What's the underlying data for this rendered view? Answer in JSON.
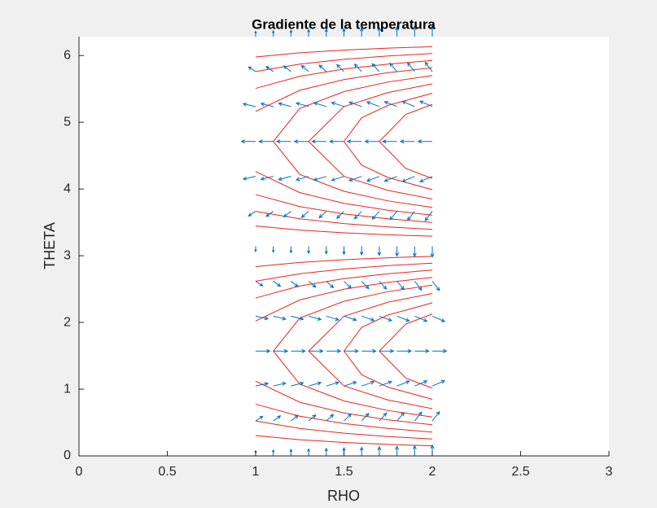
{
  "chart_data": {
    "type": "contour",
    "title": "Gradiente de la temperatura",
    "x_label": "RHO",
    "y_label": "THETA",
    "xlim": [
      0,
      3
    ],
    "ylim": [
      0,
      6.2832
    ],
    "xticks": [
      0,
      0.5,
      1,
      1.5,
      2,
      2.5,
      3
    ],
    "yticks": [
      0,
      1,
      2,
      3,
      4,
      5,
      6
    ],
    "contour_color": "#e8251f",
    "contours": [
      {
        "x": [
          2,
          1.75,
          1.5,
          1.25,
          1,
          null,
          1,
          1.25,
          1.5,
          1.75,
          2
        ],
        "y": [
          0.1506,
          0.1723,
          0.2014,
          0.2424,
          0.3047,
          null,
          2.8369,
          2.8992,
          2.9402,
          2.9693,
          2.991
        ]
      },
      {
        "x": [
          2,
          1.75,
          1.5,
          1.25,
          1,
          null,
          1,
          1.25,
          1.5,
          1.75,
          2
        ],
        "y": [
          0.2527,
          0.2898,
          0.3398,
          0.4115,
          0.5236,
          null,
          2.618,
          2.7301,
          2.8018,
          2.8518,
          2.8889
        ]
      },
      {
        "x": [
          2,
          1.75,
          1.5,
          1.25,
          1,
          null,
          1,
          1.25,
          1.5,
          1.75,
          2
        ],
        "y": [
          0.3576,
          0.4115,
          0.4855,
          0.5944,
          0.7754,
          null,
          2.3662,
          2.5472,
          2.6561,
          2.7301,
          2.784
        ]
      },
      {
        "x": [
          2,
          1.75,
          1.5,
          1.25,
          1,
          null,
          1,
          1.25,
          1.5,
          1.75,
          2
        ],
        "y": [
          0.4668,
          0.5401,
          0.6435,
          0.8038,
          1.1198,
          null,
          2.0218,
          2.3378,
          2.4981,
          2.6015,
          2.6748
        ]
      },
      {
        "x": [
          2,
          1.75,
          1.5,
          1.25,
          1.1,
          1.25,
          1.5,
          1.75,
          2
        ],
        "y": [
          0.5824,
          0.6794,
          0.8236,
          1.0759,
          1.5708,
          2.0657,
          2.318,
          2.4622,
          2.5592
        ]
      },
      {
        "x": [
          2,
          1.75,
          1.5,
          1.3,
          1.5,
          1.75,
          2
        ],
        "y": [
          0.7076,
          0.8378,
          1.0484,
          1.5708,
          2.0932,
          2.3038,
          2.434
        ]
      },
      {
        "x": [
          2,
          1.75,
          1.6,
          1.5,
          1.6,
          1.75,
          2
        ],
        "y": [
          0.8481,
          1.0297,
          1.2161,
          1.5708,
          1.9255,
          2.1119,
          2.2935
        ]
      },
      {
        "x": [
          2,
          1.85,
          1.7,
          1.85,
          2
        ],
        "y": [
          1.016,
          1.1656,
          1.5708,
          1.976,
          2.1256
        ]
      },
      {
        "x": [
          2,
          1.75,
          1.5,
          1.25,
          1,
          null,
          1,
          1.25,
          1.5,
          1.75,
          2
        ],
        "y": [
          3.2922,
          3.3139,
          3.343,
          3.384,
          3.4463,
          null,
          5.9785,
          6.0408,
          6.0818,
          6.1109,
          6.1326
        ]
      },
      {
        "x": [
          2,
          1.75,
          1.5,
          1.25,
          1,
          null,
          1,
          1.25,
          1.5,
          1.75,
          2
        ],
        "y": [
          3.3943,
          3.4314,
          3.4814,
          3.5531,
          3.6652,
          null,
          5.7596,
          5.8717,
          5.9434,
          5.9934,
          6.0305
        ]
      },
      {
        "x": [
          2,
          1.75,
          1.5,
          1.25,
          1,
          null,
          1,
          1.25,
          1.5,
          1.75,
          2
        ],
        "y": [
          3.4992,
          3.5531,
          3.6271,
          3.736,
          3.917,
          null,
          5.5078,
          5.6888,
          5.7977,
          5.8717,
          5.9256
        ]
      },
      {
        "x": [
          2,
          1.75,
          1.5,
          1.25,
          1,
          null,
          1,
          1.25,
          1.5,
          1.75,
          2
        ],
        "y": [
          3.6084,
          3.6817,
          3.7851,
          3.9454,
          4.2614,
          null,
          5.1634,
          5.4794,
          5.6397,
          5.7431,
          5.8164
        ]
      },
      {
        "x": [
          2,
          1.75,
          1.5,
          1.25,
          1.1,
          1.25,
          1.5,
          1.75,
          2
        ],
        "y": [
          3.724,
          3.821,
          3.9652,
          4.2175,
          4.7124,
          5.2073,
          5.4596,
          5.6038,
          5.7008
        ]
      },
      {
        "x": [
          2,
          1.75,
          1.5,
          1.3,
          1.5,
          1.75,
          2
        ],
        "y": [
          3.8492,
          3.9794,
          4.19,
          4.7124,
          5.2348,
          5.4454,
          5.5756
        ]
      },
      {
        "x": [
          2,
          1.75,
          1.6,
          1.5,
          1.6,
          1.75,
          2
        ],
        "y": [
          3.9897,
          4.1713,
          4.3577,
          4.7124,
          5.0671,
          5.2535,
          5.4351
        ]
      },
      {
        "x": [
          2,
          1.85,
          1.7,
          1.85,
          2
        ],
        "y": [
          4.1576,
          4.3072,
          4.7124,
          5.1176,
          5.2672
        ]
      }
    ],
    "quiver": {
      "color": "#0072bd",
      "x": [
        1,
        1.1,
        1.2,
        1.3,
        1.4,
        1.5,
        1.6,
        1.7,
        1.8,
        1.9,
        2
      ],
      "y": [
        0,
        0.5236,
        1.0472,
        1.5708,
        2.0944,
        2.618,
        3.1416,
        3.6652,
        4.1888,
        4.7124,
        5.236,
        5.7596,
        6.2832
      ],
      "u": [
        [
          0,
          0,
          0,
          0,
          0,
          0,
          0,
          0,
          0,
          0,
          0
        ],
        [
          0.5,
          0.5,
          0.5,
          0.5,
          0.5,
          0.5,
          0.5,
          0.5,
          0.5,
          0.5,
          0.5
        ],
        [
          0.87,
          0.87,
          0.87,
          0.87,
          0.87,
          0.87,
          0.87,
          0.87,
          0.87,
          0.87,
          0.87
        ],
        [
          1,
          1,
          1,
          1,
          1,
          1,
          1,
          1,
          1,
          1,
          1
        ],
        [
          0.87,
          0.87,
          0.87,
          0.87,
          0.87,
          0.87,
          0.87,
          0.87,
          0.87,
          0.87,
          0.87
        ],
        [
          0.5,
          0.5,
          0.5,
          0.5,
          0.5,
          0.5,
          0.5,
          0.5,
          0.5,
          0.5,
          0.5
        ],
        [
          0,
          0,
          0,
          0,
          0,
          0,
          0,
          0,
          0,
          0,
          0
        ],
        [
          -0.5,
          -0.5,
          -0.5,
          -0.5,
          -0.5,
          -0.5,
          -0.5,
          -0.5,
          -0.5,
          -0.5,
          -0.5
        ],
        [
          -0.87,
          -0.87,
          -0.87,
          -0.87,
          -0.87,
          -0.87,
          -0.87,
          -0.87,
          -0.87,
          -0.87,
          -0.87
        ],
        [
          -1,
          -1,
          -1,
          -1,
          -1,
          -1,
          -1,
          -1,
          -1,
          -1,
          -1
        ],
        [
          -0.87,
          -0.87,
          -0.87,
          -0.87,
          -0.87,
          -0.87,
          -0.87,
          -0.87,
          -0.87,
          -0.87,
          -0.87
        ],
        [
          -0.5,
          -0.5,
          -0.5,
          -0.5,
          -0.5,
          -0.5,
          -0.5,
          -0.5,
          -0.5,
          -0.5,
          -0.5
        ],
        [
          0,
          0,
          0,
          0,
          0,
          0,
          0,
          0,
          0,
          0,
          0
        ]
      ],
      "v": [
        [
          1,
          1.1,
          1.2,
          1.3,
          1.4,
          1.5,
          1.6,
          1.7,
          1.8,
          1.9,
          2
        ],
        [
          0.87,
          0.95,
          1.04,
          1.13,
          1.21,
          1.3,
          1.39,
          1.47,
          1.56,
          1.65,
          1.73
        ],
        [
          0.5,
          0.55,
          0.6,
          0.65,
          0.7,
          0.75,
          0.8,
          0.85,
          0.9,
          0.95,
          1
        ],
        [
          0,
          0,
          0,
          0,
          0,
          0,
          0,
          0,
          0,
          0,
          0
        ],
        [
          -0.5,
          -0.55,
          -0.6,
          -0.65,
          -0.7,
          -0.75,
          -0.8,
          -0.85,
          -0.9,
          -0.95,
          -1
        ],
        [
          -0.87,
          -0.95,
          -1.04,
          -1.13,
          -1.21,
          -1.3,
          -1.39,
          -1.47,
          -1.56,
          -1.65,
          -1.73
        ],
        [
          -1,
          -1.1,
          -1.2,
          -1.3,
          -1.4,
          -1.5,
          -1.6,
          -1.7,
          -1.8,
          -1.9,
          -2
        ],
        [
          -0.87,
          -0.95,
          -1.04,
          -1.13,
          -1.21,
          -1.3,
          -1.39,
          -1.47,
          -1.56,
          -1.65,
          -1.73
        ],
        [
          -0.5,
          -0.55,
          -0.6,
          -0.65,
          -0.7,
          -0.75,
          -0.8,
          -0.85,
          -0.9,
          -0.95,
          -1
        ],
        [
          0,
          0,
          0,
          0,
          0,
          0,
          0,
          0,
          0,
          0,
          0
        ],
        [
          0.5,
          0.55,
          0.6,
          0.65,
          0.7,
          0.75,
          0.8,
          0.85,
          0.9,
          0.95,
          1
        ],
        [
          0.87,
          0.95,
          1.04,
          1.13,
          1.21,
          1.3,
          1.39,
          1.47,
          1.56,
          1.65,
          1.73
        ],
        [
          1,
          1.1,
          1.2,
          1.3,
          1.4,
          1.5,
          1.6,
          1.7,
          1.8,
          1.9,
          2
        ]
      ]
    }
  }
}
